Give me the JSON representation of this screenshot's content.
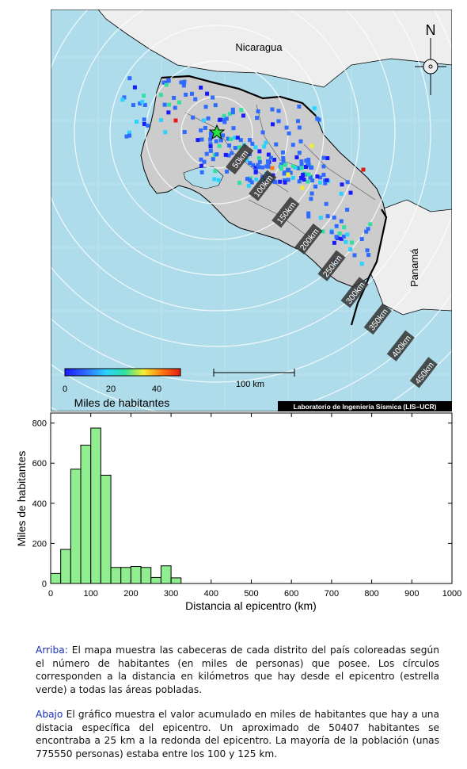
{
  "map": {
    "labels": {
      "nicaragua": "Nicaragua",
      "panama": "Panamá",
      "north": "N",
      "scale": "100 km",
      "credit": "Laboratorio de Ingeniería Sísmica (LIS–UCR)"
    },
    "rings": [
      "50km",
      "100km",
      "150km",
      "200km",
      "250km",
      "300km",
      "350km",
      "400km",
      "450km"
    ],
    "colorbar": {
      "title": "Miles de habitantes",
      "ticks": [
        "0",
        "20",
        "40"
      ],
      "stops": [
        "#1a1aff",
        "#2f6bff",
        "#2ad2ff",
        "#30e0a0",
        "#f4ee30",
        "#ff7a10",
        "#e61a10"
      ]
    },
    "colors": {
      "sea": "#aedcea",
      "land_cr": "#cccccc",
      "land_other": "#eeeeee",
      "epicenter": "#27e33b"
    }
  },
  "chart_data": {
    "type": "bar",
    "xlabel": "Distancia al epicentro (km)",
    "ylabel": "Miles de habitantes",
    "xlim": [
      0,
      1000
    ],
    "ylim": [
      0,
      850
    ],
    "xticks": [
      "0",
      "100",
      "200",
      "300",
      "400",
      "500",
      "600",
      "700",
      "800",
      "900",
      "1000"
    ],
    "yticks": [
      "0",
      "200",
      "400",
      "600",
      "800"
    ],
    "bin_width": 25,
    "x": [
      0,
      25,
      50,
      75,
      100,
      125,
      150,
      175,
      200,
      225,
      250,
      275,
      300
    ],
    "values": [
      50,
      170,
      570,
      690,
      775,
      540,
      80,
      80,
      85,
      80,
      30,
      88,
      28
    ],
    "bar_color": "#90ee90"
  },
  "captions": {
    "top_label": "Arriba:",
    "top_text": " El mapa muestra las cabeceras de cada distrito del país coloreadas según el número de habitantes (en miles de personas) que posee.  Los círculos corresponden a la distancia en kilómetros que hay desde el epicentro (estrella verde) a todas las áreas pobladas.",
    "bottom_label": "Abajo",
    "bottom_text": " El gráfico muestra el valor acumulado en miles de habitantes que hay a una distacia específica del epicentro.  Un aproximado de 50407 habitantes se encontraba a 25 km a la redonda del epicentro.  La mayoría de la población (unas 775550 personas) estaba entre los 100 y 125 km."
  }
}
